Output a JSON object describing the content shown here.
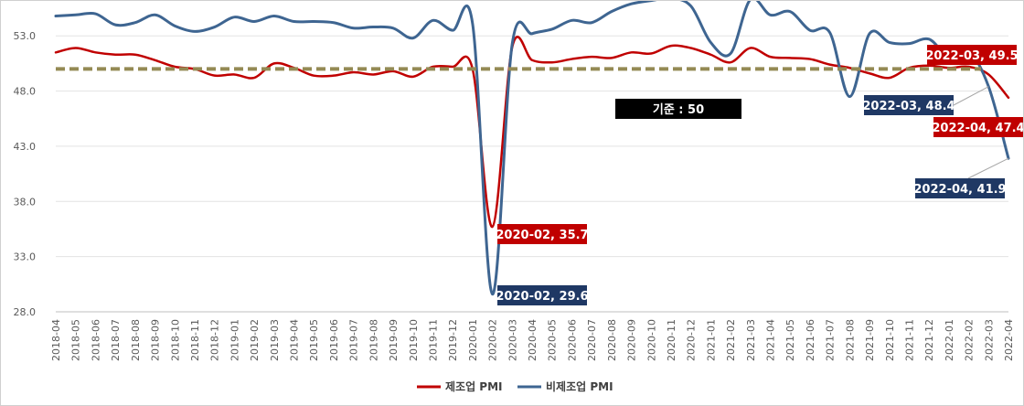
{
  "chart_data": {
    "type": "line",
    "categories": [
      "2018-04",
      "2018-05",
      "2018-06",
      "2018-07",
      "2018-08",
      "2018-09",
      "2018-10",
      "2018-11",
      "2018-12",
      "2019-01",
      "2019-02",
      "2019-03",
      "2019-04",
      "2019-05",
      "2019-06",
      "2019-07",
      "2019-08",
      "2019-09",
      "2019-10",
      "2019-11",
      "2019-12",
      "2020-01",
      "2020-02",
      "2020-03",
      "2020-04",
      "2020-05",
      "2020-06",
      "2020-07",
      "2020-08",
      "2020-09",
      "2020-10",
      "2020-11",
      "2020-12",
      "2021-01",
      "2021-02",
      "2021-03",
      "2021-04",
      "2021-05",
      "2021-06",
      "2021-07",
      "2021-08",
      "2021-09",
      "2021-10",
      "2021-11",
      "2021-12",
      "2022-01",
      "2022-02",
      "2022-03",
      "2022-04"
    ],
    "series": [
      {
        "name": "제조업 PMI",
        "color": "#c00000",
        "values": [
          51.5,
          51.9,
          51.5,
          51.3,
          51.3,
          50.8,
          50.2,
          50.0,
          49.4,
          49.5,
          49.2,
          50.5,
          50.1,
          49.4,
          49.4,
          49.7,
          49.5,
          49.8,
          49.3,
          50.2,
          50.2,
          50.0,
          35.7,
          52.0,
          50.8,
          50.6,
          50.9,
          51.1,
          51.0,
          51.5,
          51.4,
          52.1,
          51.9,
          51.3,
          50.6,
          51.9,
          51.1,
          51.0,
          50.9,
          50.4,
          50.1,
          49.6,
          49.2,
          50.1,
          50.3,
          50.1,
          50.2,
          49.5,
          47.4
        ]
      },
      {
        "name": "비제조업 PMI",
        "color": "#3e6591",
        "values": [
          54.8,
          54.9,
          55.0,
          54.0,
          54.2,
          54.9,
          53.9,
          53.4,
          53.8,
          54.7,
          54.3,
          54.8,
          54.3,
          54.3,
          54.2,
          53.7,
          53.8,
          53.7,
          52.8,
          54.4,
          53.5,
          54.1,
          29.6,
          52.3,
          53.2,
          53.6,
          54.4,
          54.2,
          55.2,
          55.9,
          56.2,
          56.4,
          55.7,
          52.4,
          51.4,
          56.3,
          54.9,
          55.2,
          53.5,
          53.3,
          47.5,
          53.2,
          52.4,
          52.3,
          52.7,
          51.1,
          51.6,
          48.4,
          41.9
        ]
      }
    ],
    "ylim": [
      28.0,
      56.0
    ],
    "yticks": [
      "28.0",
      "33.0",
      "38.0",
      "43.0",
      "48.0",
      "53.0"
    ],
    "grid": true,
    "legend_position": "bottom-center",
    "reference": {
      "value": 50,
      "label": "기준 : 50",
      "color": "#948a54"
    },
    "annotations": [
      {
        "label": "2020-02, 35.7",
        "series": 0,
        "index": 22,
        "color": "#c00000"
      },
      {
        "label": "2020-02, 29.6",
        "series": 1,
        "index": 22,
        "color": "#1f3864"
      },
      {
        "label": "2022-03, 49.5",
        "series": 0,
        "index": 47,
        "color": "#c00000"
      },
      {
        "label": "2022-03, 48.4",
        "series": 1,
        "index": 47,
        "color": "#1f3864"
      },
      {
        "label": "2022-04, 47.4",
        "series": 0,
        "index": 48,
        "color": "#c00000"
      },
      {
        "label": "2022-04, 41.9",
        "series": 1,
        "index": 48,
        "color": "#1f3864"
      }
    ]
  }
}
